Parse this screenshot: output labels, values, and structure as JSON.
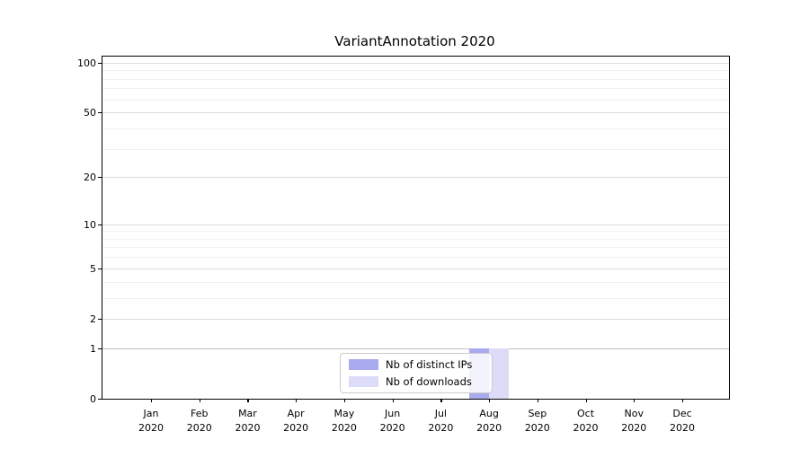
{
  "title": "VariantAnnotation 2020",
  "chart_data": {
    "type": "bar",
    "title": "VariantAnnotation 2020",
    "xlabel": "",
    "ylabel": "",
    "yscale": "log10(1+y)",
    "ylim": [
      0,
      109
    ],
    "yticks": [
      0,
      1,
      2,
      5,
      10,
      20,
      50,
      100
    ],
    "yminorticks": [
      3,
      4,
      6,
      7,
      8,
      9,
      30,
      40,
      60,
      70,
      80,
      90
    ],
    "grid": "on",
    "x_month_labels": [
      "Jan",
      "Feb",
      "Mar",
      "Apr",
      "May",
      "Jun",
      "Jul",
      "Aug",
      "Sep",
      "Oct",
      "Nov",
      "Dec"
    ],
    "x_year_label": "2020",
    "series": [
      {
        "name": "Nb of distinct IPs",
        "color": "#aaaaee",
        "values": [
          0,
          0,
          0,
          0,
          0,
          0,
          0,
          1,
          0,
          0,
          0,
          0
        ]
      },
      {
        "name": "Nb of downloads",
        "color": "#dcdcf8",
        "values": [
          0,
          0,
          0,
          0,
          0,
          0,
          0,
          1,
          0,
          0,
          0,
          0
        ]
      }
    ],
    "legend_position": "lower center"
  },
  "colors": {
    "axis": "#000000",
    "grid_major": "#dcdcdc",
    "grid_emphasis": "#c0c0c0",
    "grid_minor": "#f1f1f1",
    "legend_border": "#cccccc"
  }
}
